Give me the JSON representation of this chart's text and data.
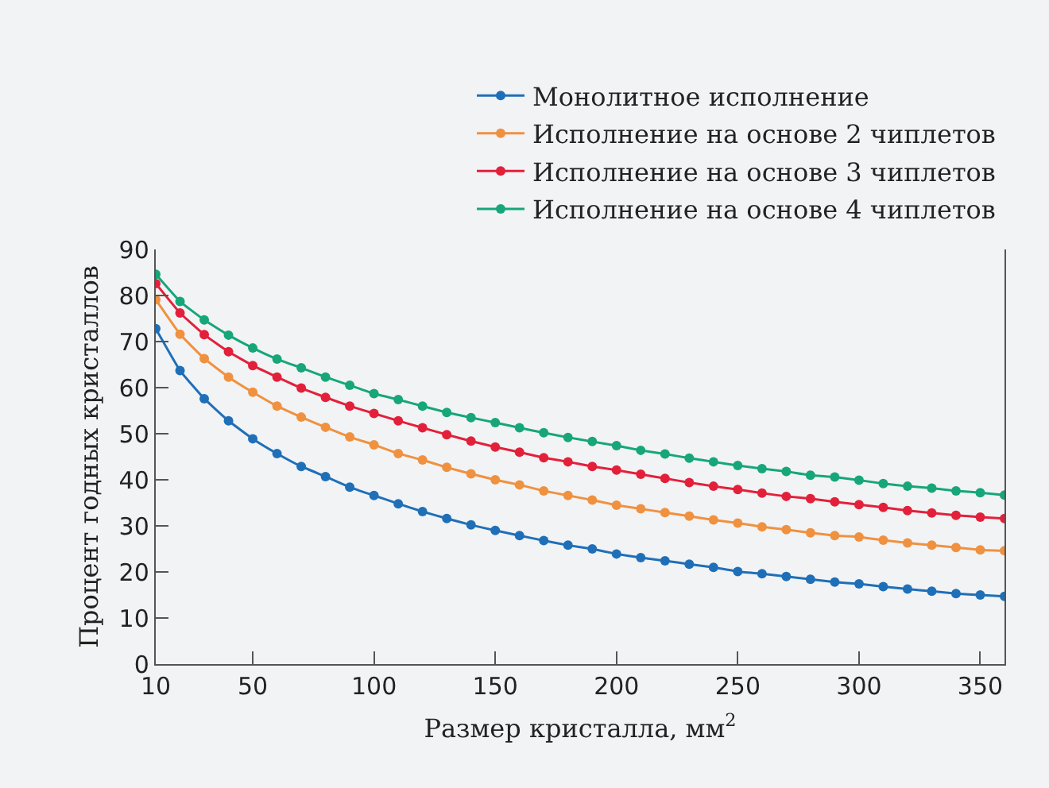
{
  "chart_data": {
    "type": "line",
    "xlabel": "Размер кристалла, мм$^{2}$",
    "ylabel": "Процент годных кристаллов",
    "x": [
      10,
      20,
      30,
      40,
      50,
      60,
      70,
      80,
      90,
      100,
      110,
      120,
      130,
      140,
      150,
      160,
      170,
      180,
      190,
      200,
      210,
      220,
      230,
      240,
      250,
      260,
      270,
      280,
      290,
      300,
      310,
      320,
      330,
      340,
      350,
      360
    ],
    "series": [
      {
        "name": "Монолитное исполнение",
        "color": "#1f6fb8",
        "values": [
          72.8,
          63.7,
          57.6,
          52.8,
          48.9,
          45.7,
          42.9,
          40.7,
          38.4,
          36.6,
          34.8,
          33.1,
          31.6,
          30.2,
          29.0,
          27.9,
          26.8,
          25.8,
          25.0,
          23.9,
          23.1,
          22.4,
          21.7,
          21.0,
          20.1,
          19.6,
          19.0,
          18.4,
          17.8,
          17.4,
          16.8,
          16.3,
          15.8,
          15.3,
          15.0,
          14.7
        ]
      },
      {
        "name": "Исполнение на основе 2 чиплетов",
        "color": "#f0913f",
        "values": [
          79.1,
          71.6,
          66.3,
          62.3,
          59.0,
          56.0,
          53.6,
          51.4,
          49.3,
          47.6,
          45.7,
          44.3,
          42.7,
          41.3,
          40.0,
          38.9,
          37.6,
          36.6,
          35.6,
          34.5,
          33.7,
          32.9,
          32.1,
          31.3,
          30.6,
          29.8,
          29.2,
          28.5,
          27.9,
          27.6,
          26.9,
          26.3,
          25.8,
          25.3,
          24.8,
          24.6
        ]
      },
      {
        "name": "Исполнение на основе 3 чиплетов",
        "color": "#e3203a",
        "values": [
          82.6,
          76.2,
          71.5,
          67.8,
          64.8,
          62.3,
          59.9,
          57.9,
          56.0,
          54.4,
          52.8,
          51.3,
          49.8,
          48.4,
          47.1,
          46.0,
          44.8,
          43.9,
          42.9,
          42.1,
          41.2,
          40.3,
          39.4,
          38.6,
          37.9,
          37.1,
          36.4,
          35.9,
          35.2,
          34.6,
          34.0,
          33.3,
          32.8,
          32.3,
          31.9,
          31.6
        ]
      },
      {
        "name": "Исполнение на основе 4 чиплетов",
        "color": "#16a67a",
        "values": [
          84.6,
          78.7,
          74.7,
          71.4,
          68.6,
          66.2,
          64.3,
          62.3,
          60.5,
          58.7,
          57.4,
          56.0,
          54.6,
          53.5,
          52.4,
          51.3,
          50.2,
          49.2,
          48.3,
          47.4,
          46.4,
          45.6,
          44.7,
          43.9,
          43.1,
          42.4,
          41.8,
          41.0,
          40.6,
          39.9,
          39.2,
          38.6,
          38.2,
          37.6,
          37.2,
          36.7
        ]
      }
    ],
    "xlim": [
      10,
      360
    ],
    "xticks": [
      10,
      50,
      100,
      150,
      200,
      250,
      300,
      350
    ],
    "ylim": [
      0,
      90
    ],
    "yticks": [
      0,
      10,
      20,
      30,
      40,
      50,
      60,
      70,
      80,
      90
    ],
    "grid": false,
    "legend": "top right",
    "marker": "circle",
    "line_style": "solid"
  }
}
